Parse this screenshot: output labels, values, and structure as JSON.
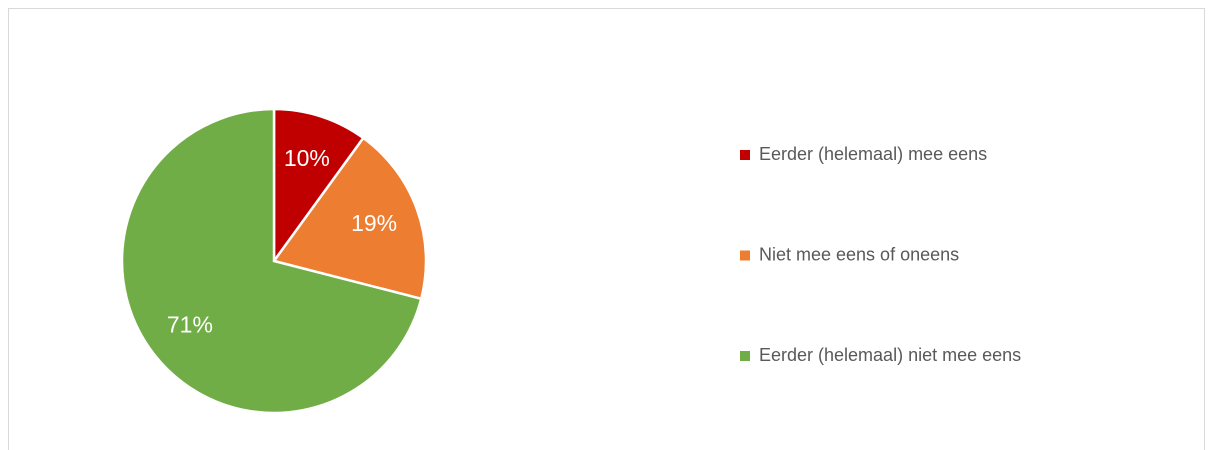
{
  "chart_data": {
    "type": "pie",
    "categories": [
      "Eerder (helemaal) mee eens",
      "Niet mee eens of oneens",
      "Eerder (helemaal) niet mee eens"
    ],
    "values": [
      10,
      19,
      71
    ],
    "value_labels": [
      "10%",
      "19%",
      "71%"
    ],
    "colors": [
      "#c00000",
      "#ed7d31",
      "#70ad47"
    ],
    "legend": "right"
  }
}
